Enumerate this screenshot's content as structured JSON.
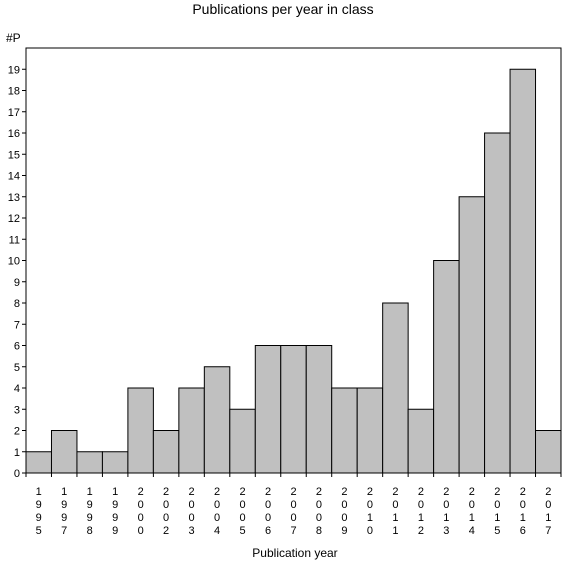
{
  "chart_data": {
    "type": "bar",
    "title": "Publications per year in class",
    "ylabel": "#P",
    "xlabel": "Publication year",
    "categories": [
      "1995",
      "1997",
      "1998",
      "1999",
      "2000",
      "2002",
      "2003",
      "2004",
      "2005",
      "2006",
      "2007",
      "2008",
      "2009",
      "2010",
      "2011",
      "2012",
      "2013",
      "2014",
      "2015",
      "2016",
      "2017"
    ],
    "values": [
      1,
      2,
      1,
      1,
      4,
      2,
      4,
      5,
      3,
      6,
      6,
      6,
      4,
      4,
      8,
      3,
      10,
      13,
      16,
      19,
      2
    ],
    "ylim": [
      0,
      20
    ],
    "yticks": [
      0,
      1,
      2,
      3,
      4,
      5,
      6,
      7,
      8,
      9,
      10,
      11,
      12,
      13,
      14,
      15,
      16,
      17,
      18,
      19
    ],
    "bar_color": "#c0c0c0",
    "grid": false
  }
}
